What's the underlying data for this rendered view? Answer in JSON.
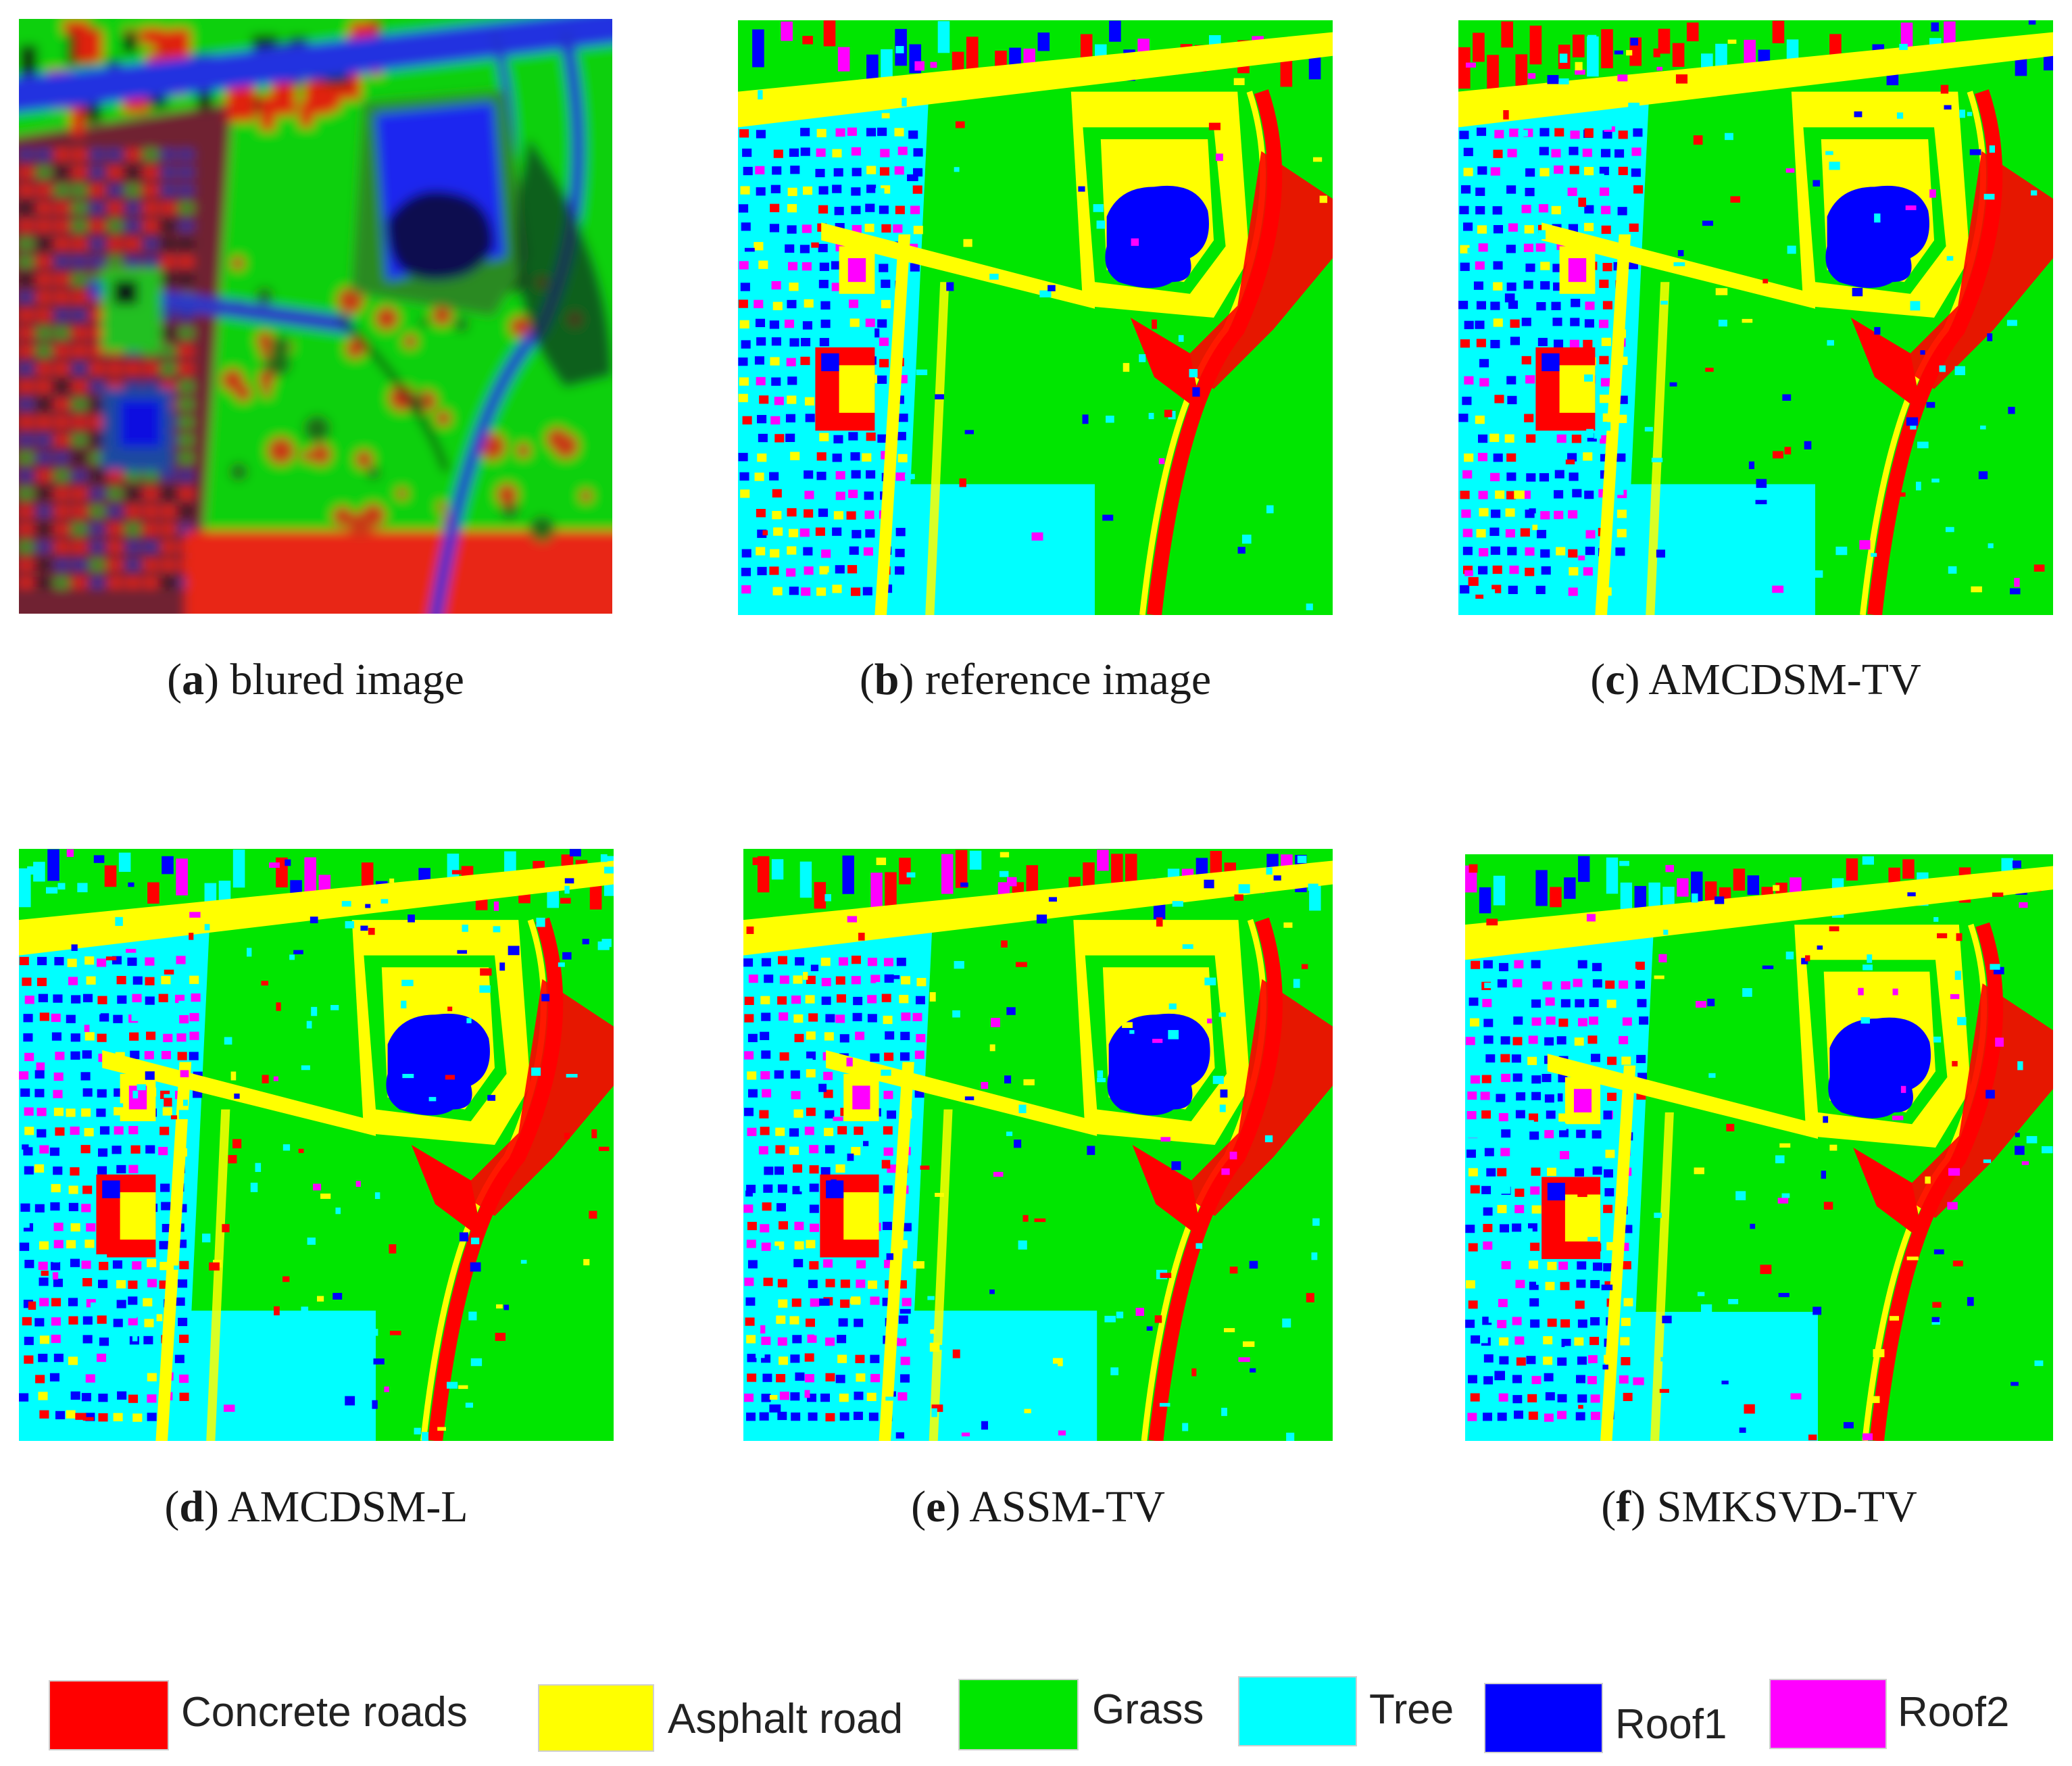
{
  "panels": [
    {
      "id": "a",
      "name": "blured image",
      "kind": "rgb"
    },
    {
      "id": "b",
      "name": "reference image",
      "kind": "map",
      "noise": 0.06
    },
    {
      "id": "c",
      "name": "AMCDSM-TV",
      "kind": "map",
      "noise": 0.14
    },
    {
      "id": "d",
      "name": "AMCDSM-L",
      "kind": "map",
      "noise": 0.18
    },
    {
      "id": "e",
      "name": "ASSM-TV",
      "kind": "map",
      "noise": 0.16
    },
    {
      "id": "f",
      "name": "SMKSVD-TV",
      "kind": "map",
      "noise": 0.15
    }
  ],
  "legend": [
    {
      "label": "Concrete roads",
      "color": "#ff0000"
    },
    {
      "label": "Asphalt road",
      "color": "#ffff00"
    },
    {
      "label": "Grass",
      "color": "#00e600"
    },
    {
      "label": "Tree",
      "color": "#00ffff"
    },
    {
      "label": "Roof1",
      "color": "#0000ff"
    },
    {
      "label": "Roof2",
      "color": "#ff00ff"
    }
  ]
}
